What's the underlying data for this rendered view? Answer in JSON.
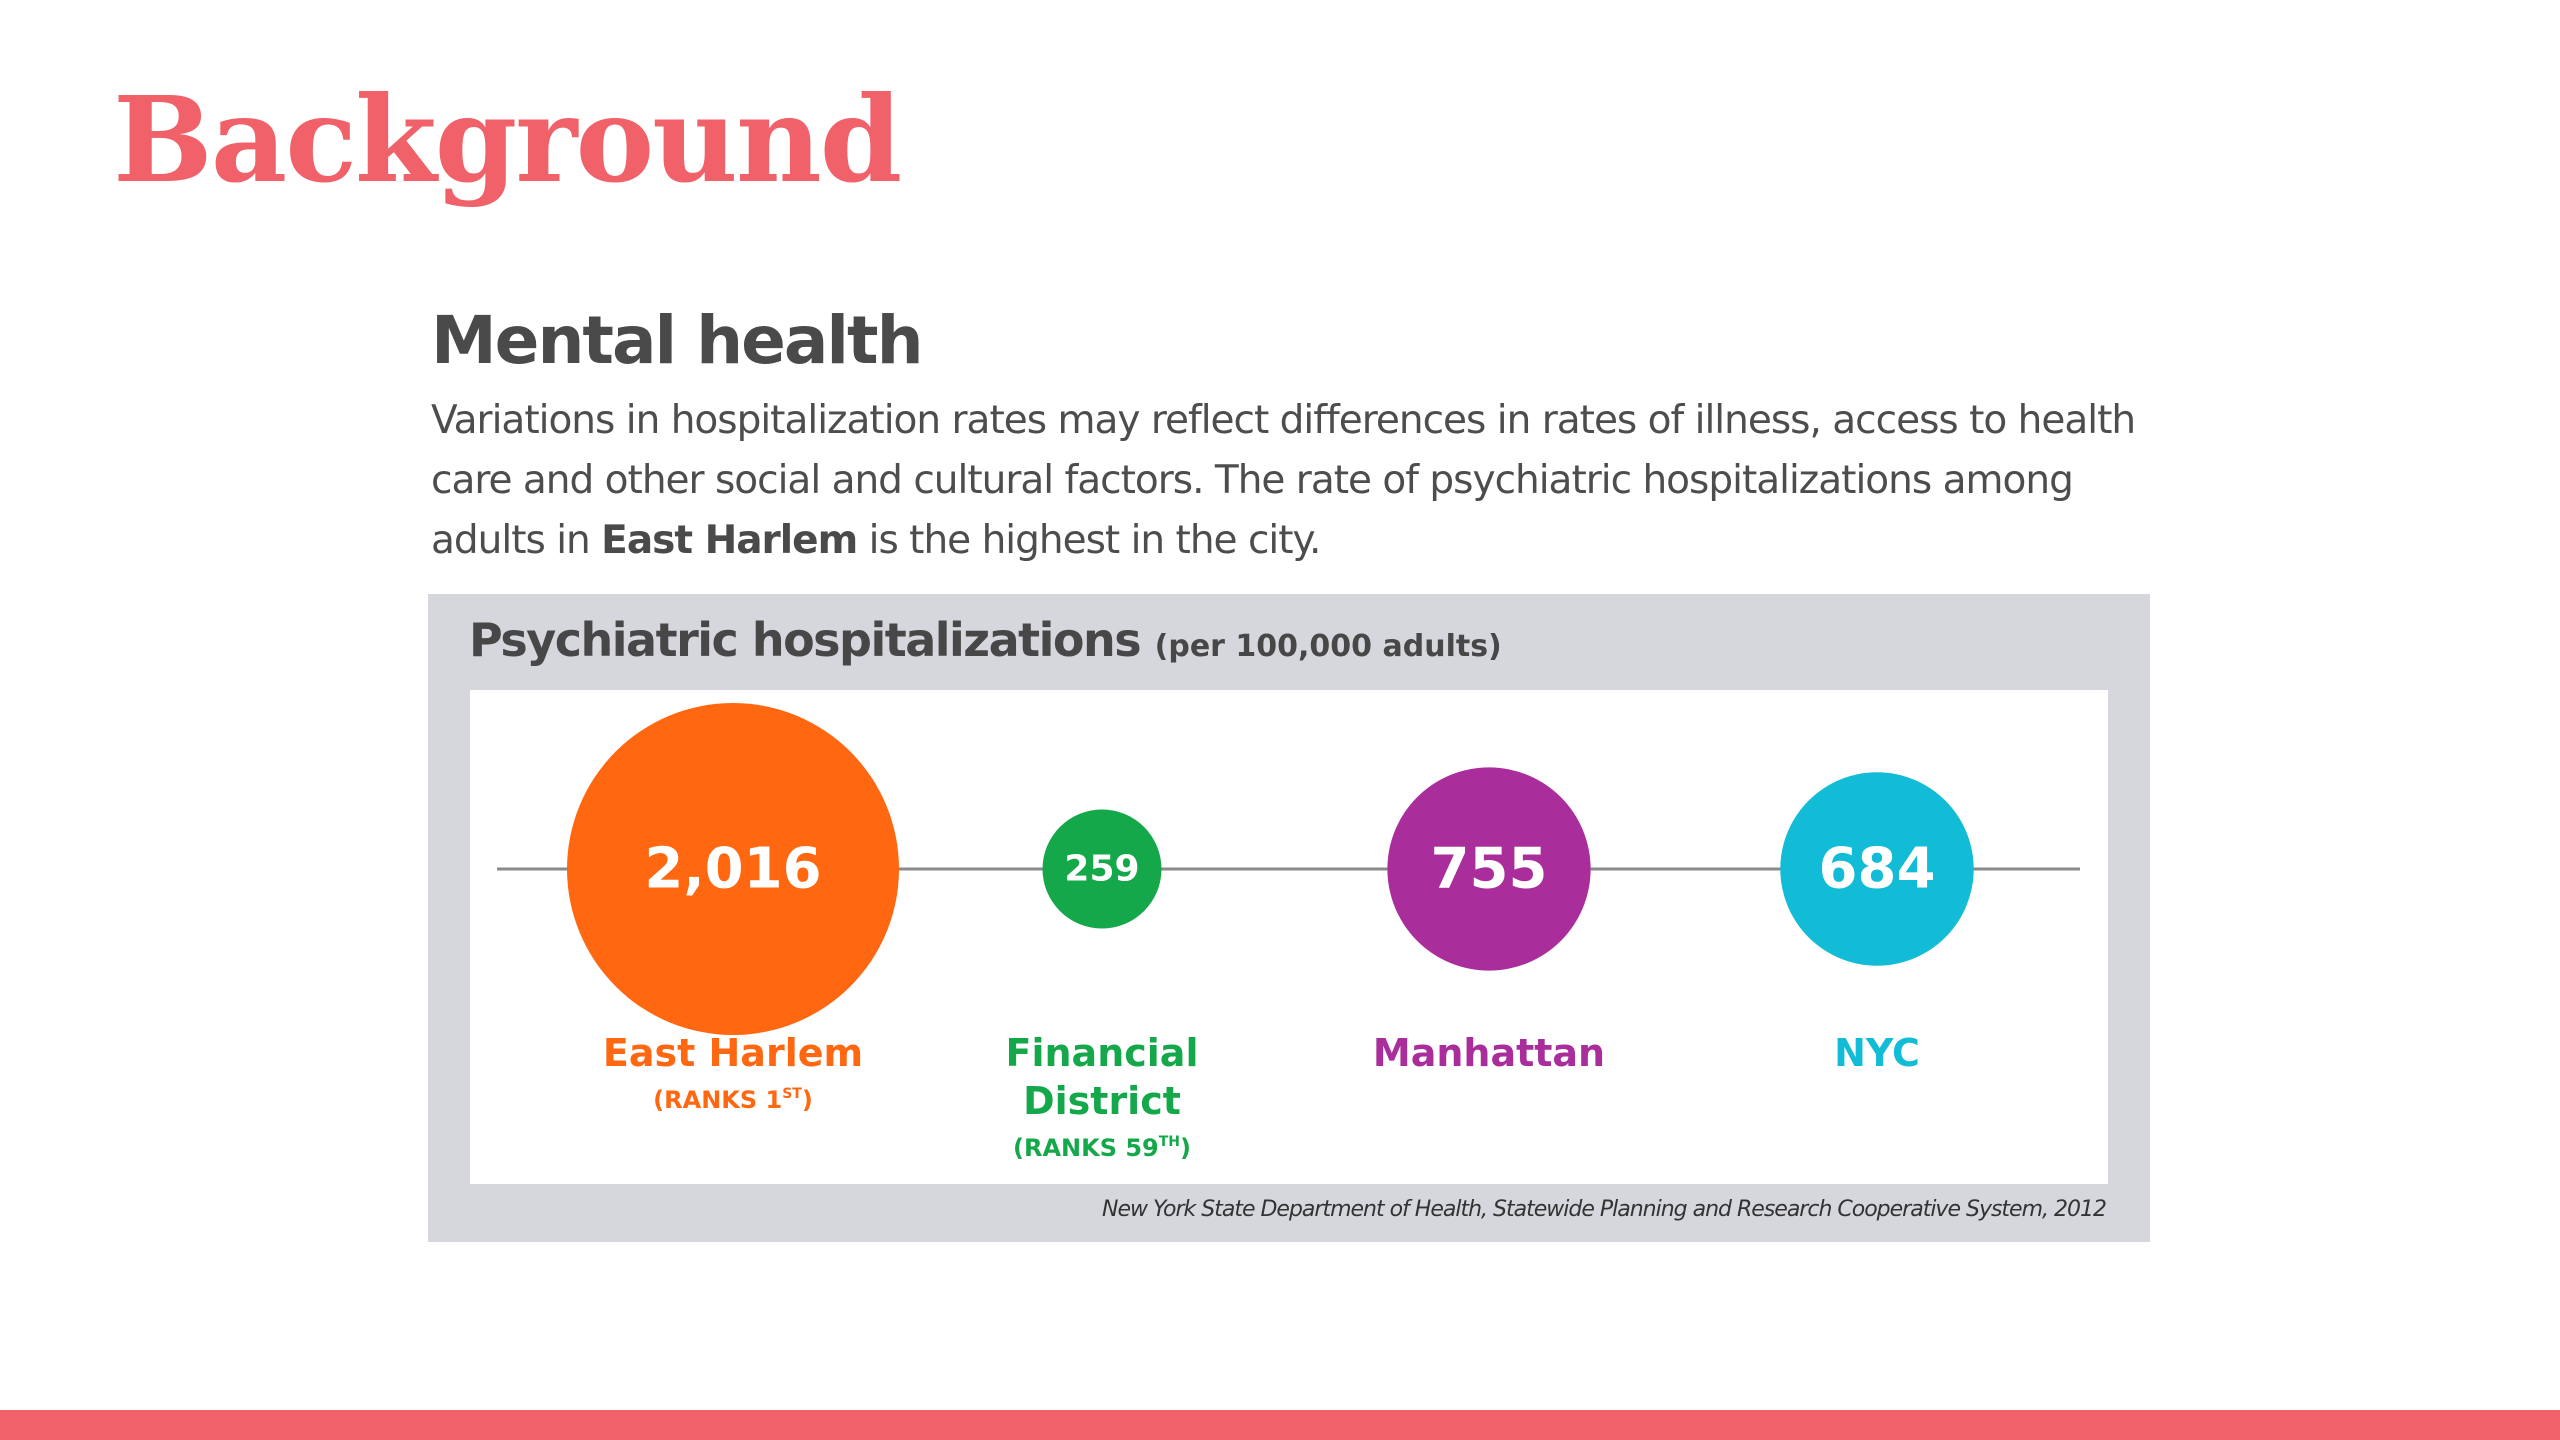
{
  "slide": {
    "title": "Background",
    "heading": "Mental health",
    "intro": {
      "part1": "Variations in hospitalization rates may reflect differences in rates of illness, access to health care and other social and cultural factors. The rate of psychiatric hospitalizations among adults in ",
      "bold": "East Harlem",
      "part2": " is the highest in the city."
    }
  },
  "colors": {
    "accent": "#F06169",
    "panel_background": "#d5d7dc",
    "text_dark": "#4a4a4a"
  },
  "chart_data": {
    "type": "bubble",
    "title": "Psychiatric hospitalizations",
    "unit": "(per 100,000 adults)",
    "categories": [
      "East Harlem",
      "Financial District",
      "Manhattan",
      "NYC"
    ],
    "values": [
      2016,
      259,
      755,
      684
    ],
    "value_labels": [
      "2,016",
      "259",
      "755",
      "684"
    ],
    "category_label_lines": [
      [
        "East Harlem"
      ],
      [
        "Financial",
        "District"
      ],
      [
        "Manhattan"
      ],
      [
        "NYC"
      ]
    ],
    "ranks": [
      {
        "prefix": "(RANKS 1",
        "sup": "ST",
        "suffix": ")"
      },
      null,
      null,
      null
    ],
    "ranks_secondary": [
      null,
      {
        "prefix": "(RANKS 59",
        "sup": "TH",
        "suffix": ")"
      },
      null,
      null
    ],
    "colors": [
      "#FF6711",
      "#15A84A",
      "#A92D9B",
      "#12BCD7"
    ],
    "source": "New York State Department of Health, Statewide Planning and Research Cooperative System, 2012"
  }
}
